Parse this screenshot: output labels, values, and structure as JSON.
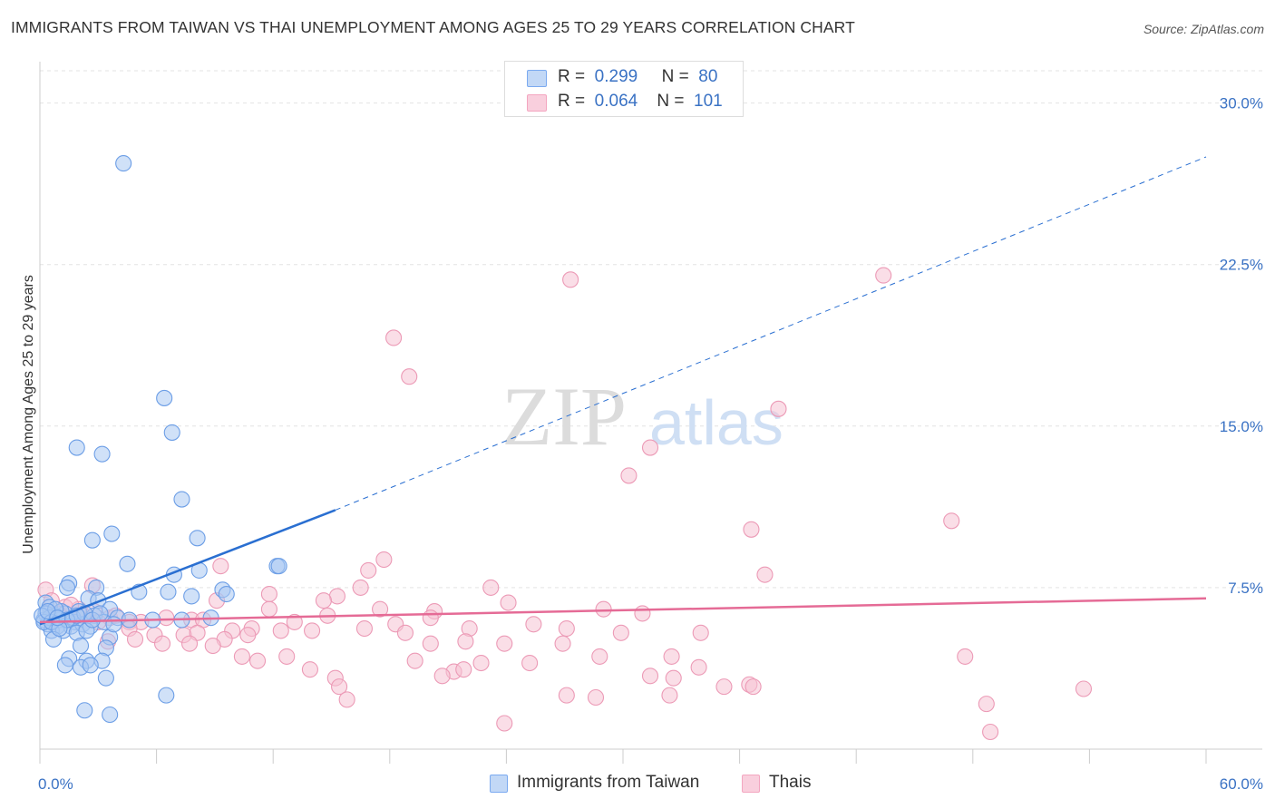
{
  "title": "IMMIGRANTS FROM TAIWAN VS THAI UNEMPLOYMENT AMONG AGES 25 TO 29 YEARS CORRELATION CHART",
  "source": "Source: ZipAtlas.com",
  "watermark": {
    "zip": "ZIP",
    "atlas": "atlas"
  },
  "legend_top": {
    "rows": [
      {
        "r_label": "R =",
        "r_value": "0.299",
        "n_label": "N =",
        "n_value": "80",
        "color": "#7baaf0"
      },
      {
        "r_label": "R =",
        "r_value": "0.064",
        "n_label": "N =",
        "n_value": "101",
        "color": "#f3a6c0"
      }
    ]
  },
  "legend_bottom": {
    "items": [
      {
        "label": "Immigrants from Taiwan",
        "color": "#7baaf0"
      },
      {
        "label": "Thais",
        "color": "#f3a6c0"
      }
    ]
  },
  "colors": {
    "blue_fill": "#a9c8f3",
    "blue_stroke": "#6c9ee6",
    "blue_line": "#2a6fd1",
    "pink_fill": "#f6c2d3",
    "pink_stroke": "#ec9ab6",
    "pink_line": "#e56b96",
    "grid": "#e3e3e3",
    "axis_text": "#3a72c4"
  },
  "chart_data": {
    "type": "scatter",
    "title": "IMMIGRANTS FROM TAIWAN VS THAI UNEMPLOYMENT AMONG AGES 25 TO 29 YEARS CORRELATION CHART",
    "xlabel": "",
    "ylabel": "Unemployment Among Ages 25 to 29 years",
    "xlim": [
      0,
      60
    ],
    "ylim": [
      0,
      31.5
    ],
    "x_tick_labels": [
      {
        "value": 0,
        "label": "0.0%"
      },
      {
        "value": 60,
        "label": "60.0%"
      }
    ],
    "y_ticks": [
      {
        "value": 7.5,
        "label": "7.5%"
      },
      {
        "value": 15.0,
        "label": "15.0%"
      },
      {
        "value": 22.5,
        "label": "22.5%"
      },
      {
        "value": 30.0,
        "label": "30.0%"
      }
    ],
    "x_minor_ticks": [
      0,
      6,
      12,
      18,
      24,
      30,
      36,
      42,
      48,
      54,
      60
    ],
    "grid": true,
    "legend_position": "top-center",
    "series": [
      {
        "name": "Immigrants from Taiwan",
        "R": 0.299,
        "N": 80,
        "trend": {
          "x0": 0,
          "y0": 5.8,
          "x1": 15.2,
          "y1": 11.1,
          "dashed_to_x": 60,
          "dashed_to_y": 27.5
        },
        "points": [
          [
            4.3,
            27.2
          ],
          [
            6.4,
            16.3
          ],
          [
            6.8,
            14.7
          ],
          [
            1.9,
            14.0
          ],
          [
            3.2,
            13.7
          ],
          [
            7.3,
            11.6
          ],
          [
            3.7,
            10.0
          ],
          [
            2.7,
            9.7
          ],
          [
            8.1,
            9.8
          ],
          [
            4.5,
            8.6
          ],
          [
            12.2,
            8.5
          ],
          [
            12.3,
            8.5
          ],
          [
            8.2,
            8.3
          ],
          [
            6.9,
            8.1
          ],
          [
            1.5,
            7.7
          ],
          [
            1.4,
            7.5
          ],
          [
            2.9,
            7.5
          ],
          [
            5.1,
            7.3
          ],
          [
            6.6,
            7.3
          ],
          [
            7.8,
            7.1
          ],
          [
            9.4,
            7.4
          ],
          [
            9.6,
            7.2
          ],
          [
            2.5,
            7.0
          ],
          [
            3.0,
            6.9
          ],
          [
            0.3,
            6.8
          ],
          [
            0.5,
            6.6
          ],
          [
            3.6,
            6.5
          ],
          [
            2.0,
            6.4
          ],
          [
            1.3,
            6.3
          ],
          [
            0.8,
            6.2
          ],
          [
            2.8,
            6.2
          ],
          [
            4.0,
            6.1
          ],
          [
            0.2,
            6.0
          ],
          [
            1.0,
            6.0
          ],
          [
            1.8,
            5.9
          ],
          [
            3.3,
            5.9
          ],
          [
            4.6,
            6.0
          ],
          [
            5.8,
            6.0
          ],
          [
            7.3,
            6.0
          ],
          [
            8.8,
            6.1
          ],
          [
            0.4,
            5.8
          ],
          [
            0.9,
            5.7
          ],
          [
            1.6,
            5.7
          ],
          [
            2.2,
            5.8
          ],
          [
            2.6,
            5.7
          ],
          [
            0.6,
            5.5
          ],
          [
            1.2,
            5.5
          ],
          [
            1.9,
            5.4
          ],
          [
            2.4,
            5.5
          ],
          [
            3.6,
            5.2
          ],
          [
            0.7,
            5.1
          ],
          [
            2.1,
            4.8
          ],
          [
            3.4,
            4.7
          ],
          [
            1.5,
            4.2
          ],
          [
            2.4,
            4.1
          ],
          [
            3.2,
            4.1
          ],
          [
            1.3,
            3.9
          ],
          [
            2.1,
            3.8
          ],
          [
            2.6,
            3.9
          ],
          [
            3.4,
            3.3
          ],
          [
            6.5,
            2.5
          ],
          [
            2.3,
            1.8
          ],
          [
            3.6,
            1.6
          ],
          [
            0.3,
            6.3
          ],
          [
            0.5,
            6.1
          ],
          [
            1.1,
            6.4
          ],
          [
            1.7,
            6.1
          ],
          [
            0.2,
            5.9
          ],
          [
            1.4,
            6.0
          ],
          [
            2.3,
            6.3
          ],
          [
            3.8,
            5.8
          ],
          [
            0.8,
            6.5
          ],
          [
            0.1,
            6.2
          ],
          [
            0.6,
            5.9
          ],
          [
            1.0,
            5.6
          ],
          [
            1.9,
            6.2
          ],
          [
            2.7,
            6.0
          ],
          [
            0.4,
            6.4
          ],
          [
            3.1,
            6.3
          ],
          [
            0.9,
            6.1
          ]
        ]
      },
      {
        "name": "Thais",
        "R": 0.064,
        "N": 101,
        "trend": {
          "x0": 0,
          "y0": 5.9,
          "x1": 60,
          "y1": 7.0
        },
        "points": [
          [
            27.3,
            21.8
          ],
          [
            43.4,
            22.0
          ],
          [
            18.2,
            19.1
          ],
          [
            19.0,
            17.3
          ],
          [
            38.0,
            15.8
          ],
          [
            31.4,
            14.0
          ],
          [
            30.3,
            12.7
          ],
          [
            36.6,
            10.2
          ],
          [
            46.9,
            10.6
          ],
          [
            17.7,
            8.8
          ],
          [
            16.9,
            8.3
          ],
          [
            37.3,
            8.1
          ],
          [
            9.3,
            8.5
          ],
          [
            2.7,
            7.6
          ],
          [
            23.2,
            7.5
          ],
          [
            16.5,
            7.5
          ],
          [
            11.8,
            7.2
          ],
          [
            15.3,
            7.1
          ],
          [
            14.6,
            6.9
          ],
          [
            9.1,
            6.9
          ],
          [
            24.1,
            6.8
          ],
          [
            17.5,
            6.5
          ],
          [
            20.3,
            6.4
          ],
          [
            29.0,
            6.5
          ],
          [
            31.0,
            6.3
          ],
          [
            11.8,
            6.5
          ],
          [
            14.8,
            6.2
          ],
          [
            20.1,
            6.1
          ],
          [
            6.5,
            6.1
          ],
          [
            7.8,
            6.0
          ],
          [
            3.6,
            6.1
          ],
          [
            4.6,
            5.9
          ],
          [
            5.2,
            5.9
          ],
          [
            13.1,
            5.9
          ],
          [
            18.3,
            5.8
          ],
          [
            25.4,
            5.8
          ],
          [
            1.3,
            6.6
          ],
          [
            0.9,
            6.3
          ],
          [
            2.0,
            6.5
          ],
          [
            2.8,
            6.4
          ],
          [
            3.9,
            6.2
          ],
          [
            8.4,
            6.0
          ],
          [
            9.9,
            5.5
          ],
          [
            10.9,
            5.6
          ],
          [
            12.4,
            5.5
          ],
          [
            14.0,
            5.5
          ],
          [
            16.7,
            5.6
          ],
          [
            18.8,
            5.4
          ],
          [
            22.1,
            5.6
          ],
          [
            27.1,
            5.6
          ],
          [
            29.9,
            5.4
          ],
          [
            34.0,
            5.4
          ],
          [
            4.6,
            5.6
          ],
          [
            5.9,
            5.3
          ],
          [
            7.4,
            5.3
          ],
          [
            8.1,
            5.4
          ],
          [
            9.5,
            5.1
          ],
          [
            10.7,
            5.3
          ],
          [
            6.3,
            4.9
          ],
          [
            7.7,
            4.9
          ],
          [
            8.9,
            4.8
          ],
          [
            20.1,
            4.9
          ],
          [
            21.9,
            5.0
          ],
          [
            23.9,
            4.9
          ],
          [
            26.9,
            4.9
          ],
          [
            4.9,
            5.1
          ],
          [
            3.5,
            5.0
          ],
          [
            10.4,
            4.3
          ],
          [
            11.2,
            4.1
          ],
          [
            12.7,
            4.3
          ],
          [
            19.3,
            4.1
          ],
          [
            22.7,
            4.0
          ],
          [
            25.2,
            4.0
          ],
          [
            28.8,
            4.3
          ],
          [
            32.5,
            4.3
          ],
          [
            13.9,
            3.7
          ],
          [
            21.3,
            3.6
          ],
          [
            21.8,
            3.7
          ],
          [
            20.7,
            3.4
          ],
          [
            33.9,
            3.8
          ],
          [
            31.4,
            3.4
          ],
          [
            15.2,
            3.3
          ],
          [
            15.4,
            2.9
          ],
          [
            32.6,
            3.3
          ],
          [
            35.2,
            2.9
          ],
          [
            36.5,
            3.0
          ],
          [
            36.7,
            2.9
          ],
          [
            27.1,
            2.5
          ],
          [
            28.6,
            2.4
          ],
          [
            32.4,
            2.5
          ],
          [
            15.8,
            2.3
          ],
          [
            47.6,
            4.3
          ],
          [
            53.7,
            2.8
          ],
          [
            48.7,
            2.1
          ],
          [
            48.9,
            0.8
          ],
          [
            23.9,
            1.2
          ],
          [
            0.3,
            7.4
          ],
          [
            0.6,
            6.9
          ],
          [
            1.6,
            6.7
          ],
          [
            2.2,
            6.2
          ],
          [
            3.0,
            5.9
          ]
        ]
      }
    ]
  }
}
